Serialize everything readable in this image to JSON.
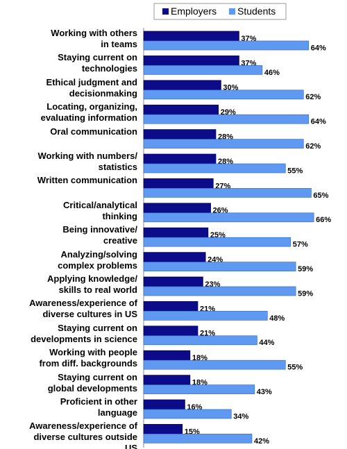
{
  "chart_data": {
    "type": "bar",
    "orientation": "horizontal",
    "categories": [
      "Working with others\nin teams",
      "Staying current on\ntechnologies",
      "Ethical judgment and\ndecisionmaking",
      "Locating, organizing,\nevaluating information",
      "Oral communication",
      "Working with numbers/\nstatistics",
      "Written communication",
      "Critical/analytical\nthinking",
      "Being innovative/\ncreative",
      "Analyzing/solving\ncomplex problems",
      "Applying knowledge/\nskills to real world",
      "Awareness/experience of\ndiverse cultures in US",
      "Staying current on\ndevelopments in science",
      "Working with people\nfrom diff. backgrounds",
      "Staying current on\nglobal developments",
      "Proficient in other\nlanguage",
      "Awareness/experience of\ndiverse cultures outside\nUS"
    ],
    "series": [
      {
        "name": "Employers",
        "color": "#0c0c8a",
        "values": [
          37,
          37,
          30,
          29,
          28,
          28,
          27,
          26,
          25,
          24,
          23,
          21,
          21,
          18,
          18,
          16,
          15
        ],
        "value_labels": [
          "37%",
          "37%",
          "30%",
          "29%",
          "28%",
          "28%",
          "27%",
          "26%",
          "25%",
          "24%",
          "23%",
          "21%",
          "21%",
          "18%",
          "18%",
          "16%",
          "15%"
        ]
      },
      {
        "name": "Students",
        "color": "#5f99f2",
        "values": [
          64,
          46,
          62,
          64,
          62,
          55,
          65,
          66,
          57,
          59,
          59,
          48,
          44,
          55,
          43,
          34,
          42
        ],
        "value_labels": [
          "64%",
          "46%",
          "62%",
          "64%",
          "62%",
          "55%",
          "65%",
          "66%",
          "57%",
          "59%",
          "59%",
          "48%",
          "44%",
          "55%",
          "43%",
          "34%",
          "42%"
        ]
      }
    ],
    "xlim": [
      0,
      70
    ],
    "legend": "top"
  }
}
